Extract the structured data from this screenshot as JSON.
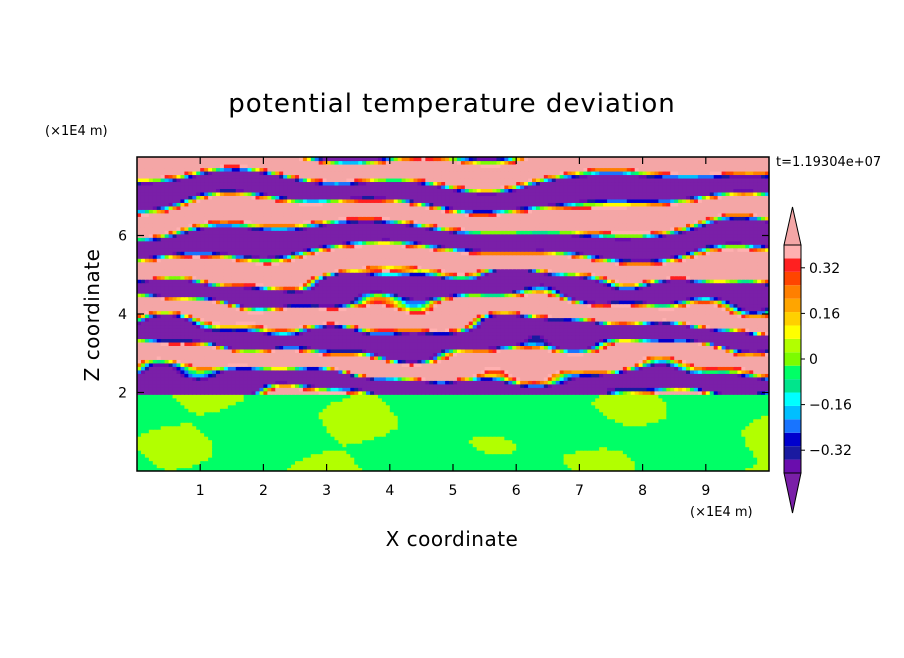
{
  "chart_data": {
    "type": "heatmap",
    "title": "potential temperature deviation",
    "xlabel": "X coordinate",
    "ylabel": "Z coordinate",
    "x_unit": "(×1E4 m)",
    "y_unit": "(×1E4 m)",
    "time_label": "t=1.19304e+07",
    "x_range": [
      0,
      10
    ],
    "y_range": [
      0,
      8
    ],
    "x_ticks": [
      "1",
      "2",
      "3",
      "4",
      "5",
      "6",
      "7",
      "8",
      "9"
    ],
    "y_ticks": [
      "2",
      "4",
      "6"
    ],
    "x_tick_values": [
      1,
      2,
      3,
      4,
      5,
      6,
      7,
      8,
      9
    ],
    "y_tick_values": [
      2,
      4,
      6
    ],
    "colorbar": {
      "levels": [
        -0.4,
        -0.36,
        -0.32,
        -0.28,
        -0.24,
        -0.2,
        -0.16,
        -0.12,
        -0.08,
        -0.04,
        0,
        0.04,
        0.08,
        0.12,
        0.16,
        0.2,
        0.24,
        0.28,
        0.32,
        0.36,
        0.4
      ],
      "labels": [
        "0.32",
        "0.16",
        "0",
        "−0.16",
        "−0.32"
      ],
      "label_values": [
        0.32,
        0.16,
        0,
        -0.16,
        -0.32
      ],
      "colors": [
        "#6a0dad",
        "#1a1aa0",
        "#0000cd",
        "#1874ff",
        "#00bfff",
        "#00ffff",
        "#00e58c",
        "#00ff66",
        "#7cfc00",
        "#b2ff00",
        "#ffff00",
        "#ffd000",
        "#ffa500",
        "#ff7f00",
        "#ff4500",
        "#ff2020",
        "#ffb0b0"
      ],
      "under_color": "#7a1fa8",
      "over_color": "#f4a6a6"
    },
    "lower_layer": {
      "z_top": 1.95,
      "base_value": -0.06,
      "patch_value": 0.06
    },
    "upper_layer": {
      "z_bottom": 1.95,
      "z_top": 8,
      "alternating_values": [
        0.45,
        -0.45
      ]
    }
  }
}
